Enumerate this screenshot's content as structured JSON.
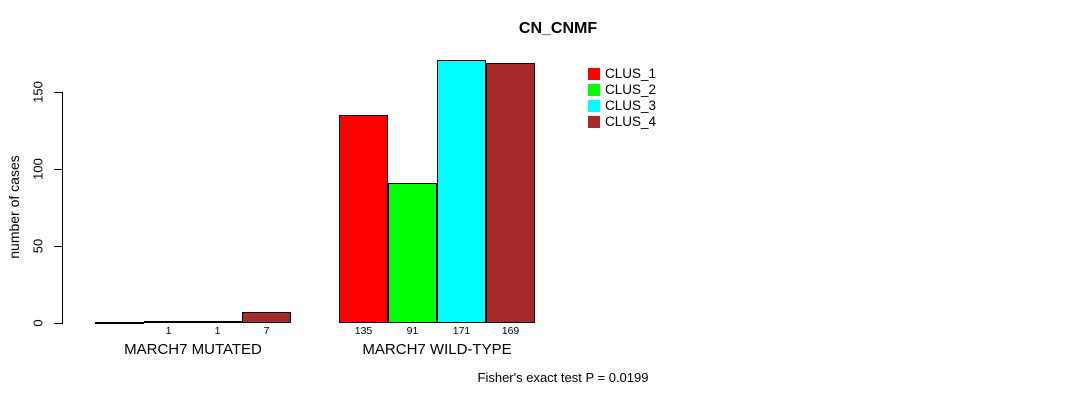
{
  "chart_data": {
    "type": "bar",
    "title": "CN_CNMF",
    "ylabel": "number of cases",
    "annotation": "Fisher's exact test P = 0.0199",
    "yticks": [
      0,
      50,
      100,
      150
    ],
    "ylim": [
      0,
      175
    ],
    "grid": false,
    "legend_position": "top-right",
    "categories": [
      "MARCH7 MUTATED",
      "MARCH7 WILD-TYPE"
    ],
    "series": [
      {
        "name": "CLUS_1",
        "color": "#ff0000",
        "values": [
          0,
          135
        ]
      },
      {
        "name": "CLUS_2",
        "color": "#00ff00",
        "values": [
          1,
          91
        ]
      },
      {
        "name": "CLUS_3",
        "color": "#00ffff",
        "values": [
          1,
          171
        ]
      },
      {
        "name": "CLUS_4",
        "color": "#a52a2a",
        "values": [
          7,
          169
        ]
      }
    ],
    "bar_value_labels": [
      [
        "",
        "1",
        "1",
        "7"
      ],
      [
        "135",
        "91",
        "171",
        "169"
      ]
    ]
  }
}
